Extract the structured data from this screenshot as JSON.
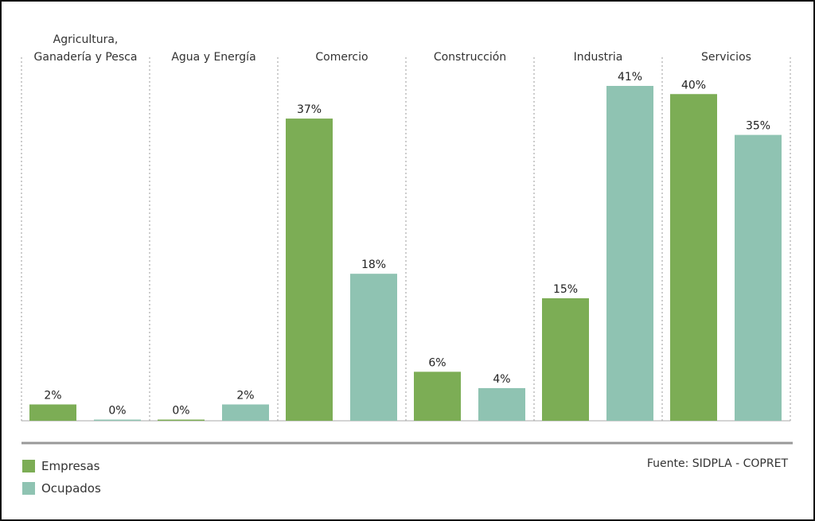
{
  "chart_data": {
    "type": "bar",
    "categories": [
      "Agricultura,\nGanadería y Pesca",
      "Agua y Energía",
      "Comercio",
      "Construcción",
      "Industria",
      "Servicios"
    ],
    "series": [
      {
        "name": "Empresas",
        "color": "#7cad55",
        "values": [
          2,
          0,
          37,
          6,
          15,
          40
        ],
        "labels": [
          "2%",
          "0%",
          "37%",
          "6%",
          "15%",
          "40%"
        ]
      },
      {
        "name": "Ocupados",
        "color": "#8fc3b2",
        "values": [
          0,
          2,
          18,
          4,
          41,
          35
        ],
        "labels": [
          "0%",
          "2%",
          "18%",
          "4%",
          "41%",
          "35%"
        ]
      }
    ],
    "ylim": [
      0,
      42
    ],
    "grid": "dotted vertical separators between categories",
    "legend_position": "bottom-left"
  },
  "legend": {
    "items": [
      {
        "label": "Empresas",
        "color": "#7cad55"
      },
      {
        "label": "Ocupados",
        "color": "#8fc3b2"
      }
    ]
  },
  "source": "Fuente: SIDPLA - COPRET"
}
